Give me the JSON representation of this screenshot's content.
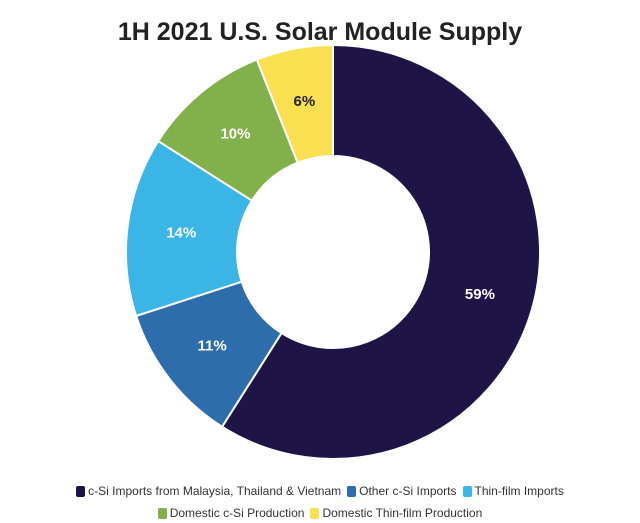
{
  "chart_data": {
    "type": "pie",
    "title": "1H 2021 U.S. Solar Module Supply",
    "donut": true,
    "slices": [
      {
        "label": "c-Si Imports from Malaysia, Thailand & Vietnam",
        "value": 59,
        "display": "59%",
        "color": "#1f1446",
        "label_color": "#ffffff"
      },
      {
        "label": "Other c-Si Imports",
        "value": 11,
        "display": "11%",
        "color": "#2e6dab",
        "label_color": "#ffffff"
      },
      {
        "label": "Thin-film Imports",
        "value": 14,
        "display": "14%",
        "color": "#3bb4e6",
        "label_color": "#ffffff"
      },
      {
        "label": "Domestic c-Si Production",
        "value": 10,
        "display": "10%",
        "color": "#82b04a",
        "label_color": "#ffffff"
      },
      {
        "label": "Domestic Thin-film Production",
        "value": 6,
        "display": "6%",
        "color": "#f8e050",
        "label_color": "#222222"
      }
    ],
    "legend_position": "bottom",
    "start": "top",
    "direction": "clockwise"
  }
}
